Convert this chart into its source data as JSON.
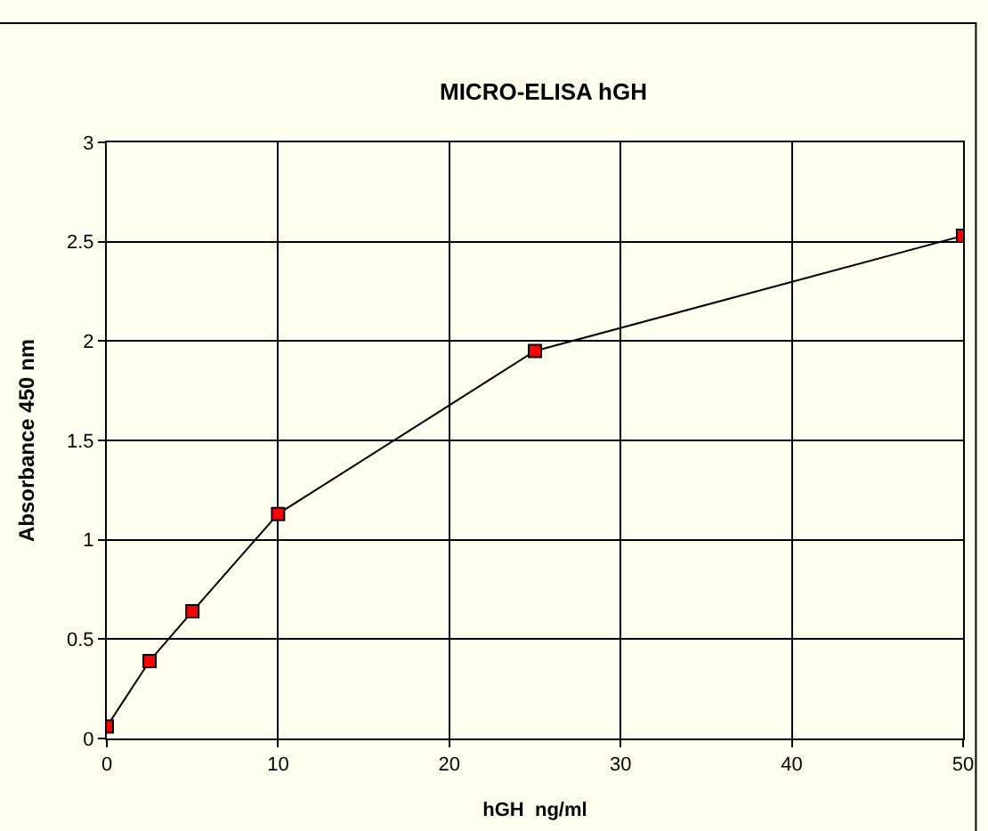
{
  "chart_data": {
    "type": "line",
    "title": "MICRO-ELISA hGH",
    "xlabel": "hGH  ng/ml",
    "ylabel": "Absorbance 450 nm",
    "x": [
      0,
      2.5,
      5,
      10,
      25,
      50
    ],
    "series": [
      {
        "color": "#000000",
        "values": [
          0.06,
          0.39,
          0.64,
          1.13,
          1.95,
          2.53
        ]
      }
    ],
    "xlim": [
      0,
      50
    ],
    "xticks": [
      0,
      10,
      20,
      30,
      40,
      50
    ],
    "ylim": [
      0,
      3
    ],
    "yticks": [
      0,
      0.5,
      1,
      1.5,
      2,
      2.5,
      3
    ],
    "grid": true,
    "legend": false,
    "marker": "square",
    "line_style": "solid"
  }
}
